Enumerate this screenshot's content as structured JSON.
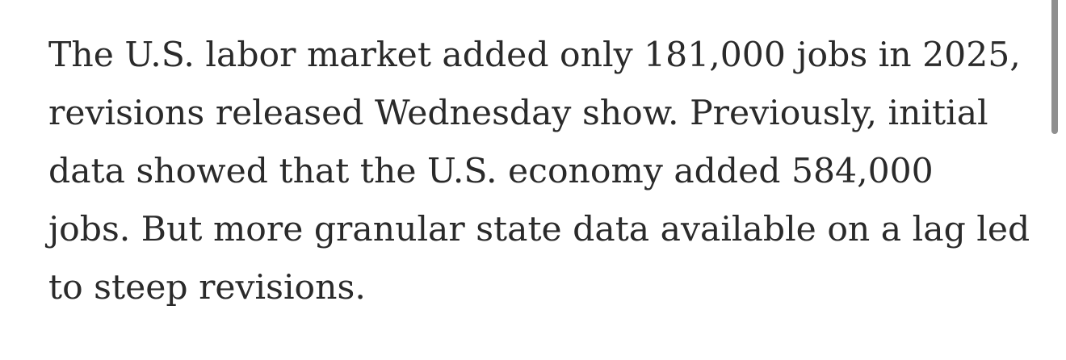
{
  "article": {
    "lines": [
      "The U.S. labor market added only 181,000 jobs in 2025,",
      "revisions released Wednesday show. Previously, initial",
      "data showed that the U.S. economy added 584,000",
      "jobs. But more granular state data available on a lag led",
      "to steep revisions."
    ],
    "text_color": "#2a2a2a"
  },
  "scrollbar": {
    "color": "#8f8f8f"
  }
}
